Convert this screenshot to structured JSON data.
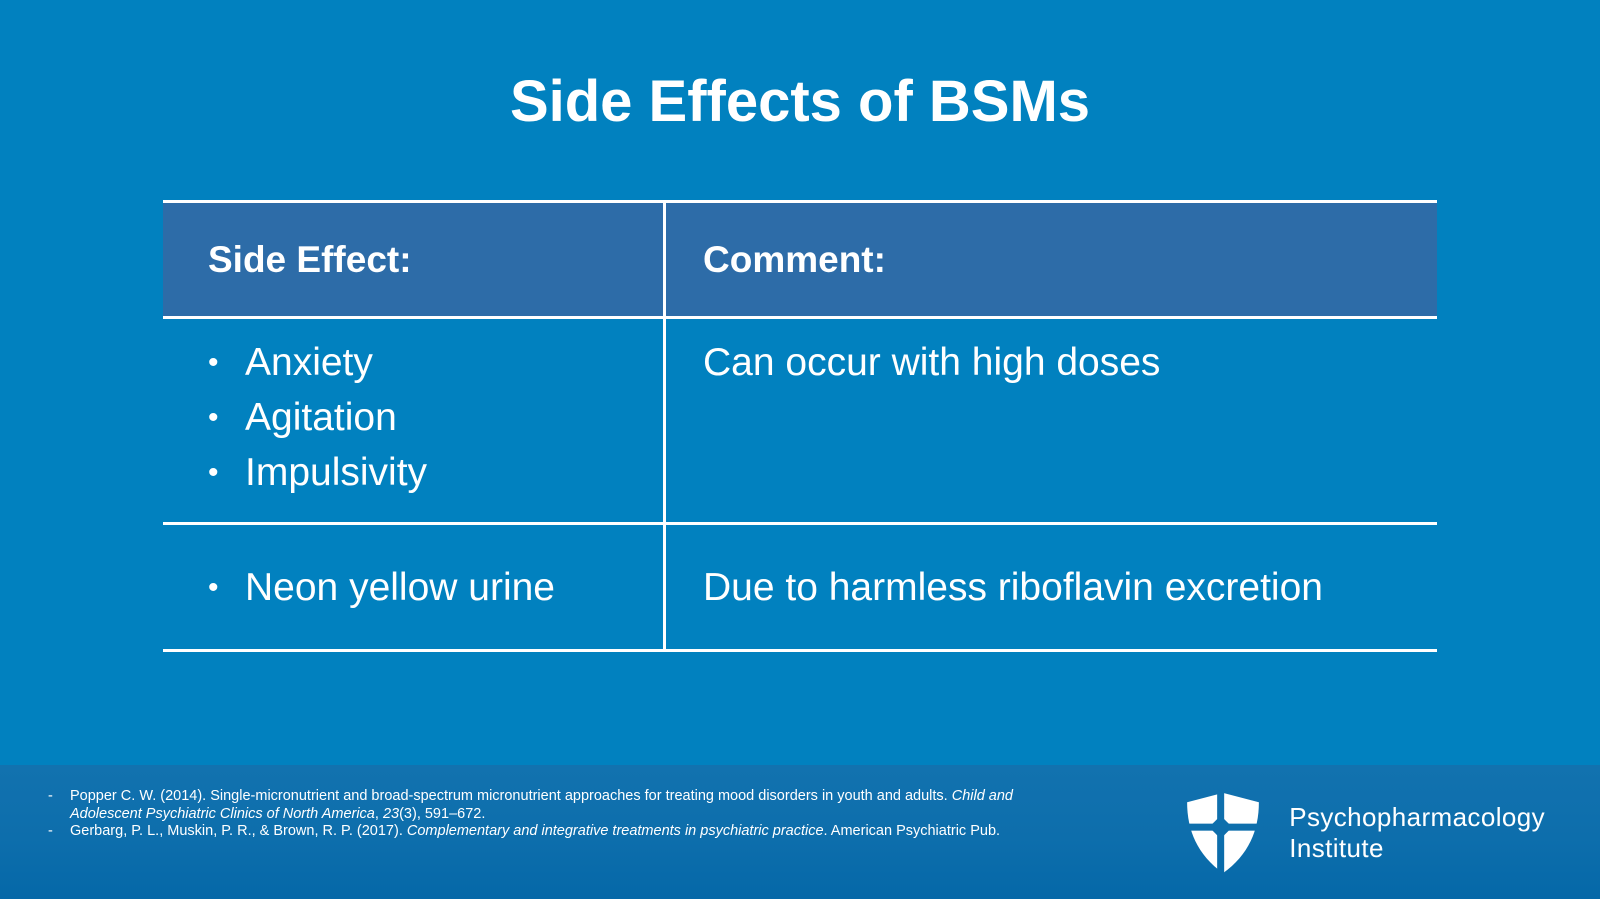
{
  "slide": {
    "title": "Side Effects of BSMs",
    "colors": {
      "background": "#0181BF",
      "table_header_fill": "#2D6CA8",
      "table_lines": "#FFFFFF",
      "footer_band_top": "#1272AF",
      "footer_band_bottom": "#0568A8",
      "text": "#FFFFFF"
    }
  },
  "table": {
    "columns": [
      {
        "label": "Side Effect:"
      },
      {
        "label": "Comment:"
      }
    ],
    "rows": [
      {
        "side_effects": [
          "Anxiety",
          "Agitation",
          "Impulsivity"
        ],
        "comment": "Can occur with high doses"
      },
      {
        "side_effects": [
          "Neon yellow urine"
        ],
        "comment": "Due to harmless riboflavin excretion"
      }
    ]
  },
  "references": {
    "items": [
      {
        "marker": "-",
        "segments": [
          {
            "t": "Popper C. W. (2014). Single-micronutrient and broad-spectrum micronutrient approaches for treating mood disorders in youth and adults. ",
            "i": false
          },
          {
            "t": "Child and Adolescent Psychiatric Clinics of North America",
            "i": true
          },
          {
            "t": ", ",
            "i": false
          },
          {
            "t": "23",
            "i": true
          },
          {
            "t": "(3), 591–672.",
            "i": false
          }
        ]
      },
      {
        "marker": "-",
        "segments": [
          {
            "t": "Gerbarg, P. L., Muskin, P. R., & Brown, R. P. (2017). ",
            "i": false
          },
          {
            "t": "Complementary and integrative treatments in psychiatric practice",
            "i": true
          },
          {
            "t": ". American Psychiatric Pub.",
            "i": false
          }
        ]
      }
    ]
  },
  "branding": {
    "logo_icon": "shield-cross-icon",
    "name_line1": "Psychopharmacology",
    "name_line2": "Institute"
  }
}
